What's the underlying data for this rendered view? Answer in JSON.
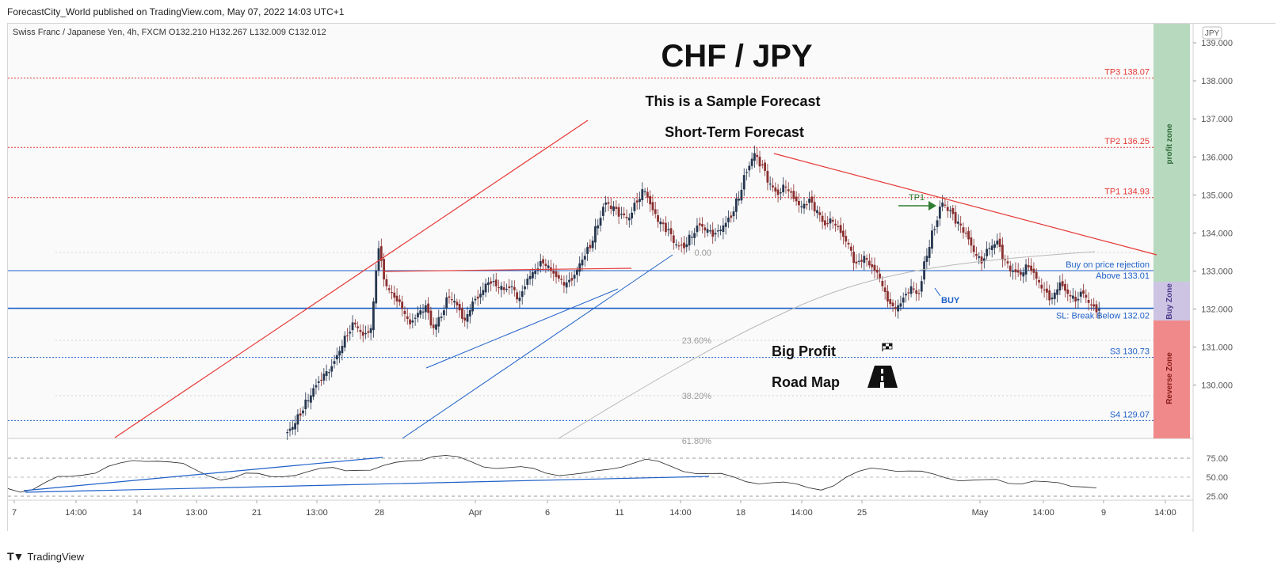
{
  "header": {
    "published": "ForecastCity_World published on TradingView.com, May 07, 2022 14:03 UTC+1",
    "symbol_line": "Swiss Franc / Japanese Yen, 4h, FXCM",
    "ohlc": {
      "open": "O132.210",
      "high": "H132.267",
      "low": "L132.009",
      "close": "C132.012"
    },
    "currency_badge": "JPY"
  },
  "annotations": {
    "title": "CHF / JPY",
    "subtitle1": "This is a Sample Forecast",
    "subtitle2": "Short-Term Forecast",
    "big_profit": "Big Profit",
    "road_map": "Road Map",
    "tp1_arrow": "TP1",
    "buy_label": "BUY",
    "buy_zone": "Buy Zone",
    "reverse_zone": "Reverse Zone",
    "profit_zone": "profit zone"
  },
  "levels": [
    {
      "label": "TP3 138.07",
      "price": 138.07,
      "color": "#e53935"
    },
    {
      "label": "TP2 136.25",
      "price": 136.25,
      "color": "#e53935"
    },
    {
      "label": "TP1 134.93",
      "price": 134.93,
      "color": "#e53935"
    },
    {
      "label": "Buy on price rejection",
      "price": 133.01,
      "color": "#1e60c8"
    },
    {
      "label": "Above 133.01",
      "price": 133.01,
      "color": "#1e60c8"
    },
    {
      "label": "SL: Break Below 132.02",
      "price": 132.02,
      "color": "#1e60c8"
    },
    {
      "label": "S3 130.73",
      "price": 130.73,
      "color": "#1e60c8"
    },
    {
      "label": "S4 129.07",
      "price": 129.07,
      "color": "#1e60c8"
    }
  ],
  "fib_labels": [
    "0.00",
    "23.60%",
    "38.20%",
    "61.80%"
  ],
  "footer": {
    "brand": "TradingView"
  },
  "colors": {
    "up": "#26364f",
    "down": "#8a2f2f",
    "resistance": "#e53935",
    "support": "#1e60c8",
    "profit_zone": "#b7d9bd",
    "buy_zone": "#cdc4e4",
    "reverse_zone": "#f08a8a"
  },
  "chart_data": {
    "type": "line",
    "title": "CHF / JPY",
    "xlabel": "",
    "ylabel": "",
    "ylim": [
      128.6,
      139.5
    ],
    "y_ticks": [
      "139.000",
      "138.000",
      "137.000",
      "136.000",
      "135.000",
      "134.000",
      "133.000",
      "132.000",
      "131.000",
      "130.000"
    ],
    "x_ticks": [
      "7",
      "14:00",
      "14",
      "13:00",
      "21",
      "13:00",
      "28",
      "Apr",
      "6",
      "11",
      "14:00",
      "18",
      "14:00",
      "25",
      "May",
      "14:00",
      "9",
      "14:00"
    ],
    "series": [
      {
        "values": [
          128.9,
          129.2,
          129.6,
          130.0,
          130.3,
          130.5,
          130.9,
          131.3,
          131.6,
          131.3,
          131.5,
          133.6,
          132.6,
          132.3,
          132.0,
          131.6,
          131.9,
          132.1,
          131.5,
          131.8,
          132.3,
          132.1,
          131.7,
          132.2,
          132.4,
          132.7,
          132.6,
          132.5,
          132.6,
          132.3,
          132.8,
          133.0,
          133.2,
          133.0,
          132.8,
          132.7,
          132.9,
          133.3,
          133.6,
          134.2,
          134.8,
          134.7,
          134.5,
          134.4,
          134.8,
          135.1,
          134.6,
          134.3,
          134.1,
          133.7,
          133.6,
          133.9,
          134.2,
          134.1,
          134.0,
          134.2,
          134.4,
          134.9,
          135.6,
          136.1,
          135.8,
          135.3,
          135.0,
          135.2,
          134.9,
          134.7,
          134.9,
          134.6,
          134.2,
          134.3,
          134.0,
          133.7,
          133.2,
          133.4,
          133.1,
          132.8,
          132.2,
          132.0,
          132.3,
          132.6,
          132.4,
          133.4,
          134.1,
          134.8,
          134.6,
          134.3,
          134.0,
          133.5,
          133.2,
          133.6,
          133.8,
          133.3,
          133.0,
          132.9,
          133.1,
          132.8,
          132.5,
          132.3,
          132.7,
          132.4,
          132.2,
          132.4,
          132.1,
          132.0
        ]
      },
      {
        "name": "RSI",
        "values": [
          35,
          33,
          36,
          42,
          48,
          50,
          55,
          58,
          64,
          66,
          70,
          72,
          74,
          71,
          66,
          57,
          52,
          49,
          51,
          54,
          52,
          50,
          53,
          55,
          57,
          59,
          61,
          60,
          62,
          60,
          63,
          67,
          72,
          75,
          79,
          77,
          74,
          70,
          66,
          64,
          62,
          61,
          60,
          57,
          55,
          54,
          53,
          56,
          61,
          66,
          70,
          72,
          68,
          64,
          60,
          57,
          54,
          52,
          49,
          46,
          44,
          43,
          41,
          39,
          37,
          36,
          40,
          48,
          55,
          62,
          63,
          60,
          57,
          55,
          53,
          51,
          48,
          46,
          44,
          45,
          43,
          44,
          46,
          42,
          40,
          38,
          40,
          38
        ]
      }
    ],
    "rsi_ticks": [
      "75.00",
      "50.00",
      "25.00"
    ]
  }
}
